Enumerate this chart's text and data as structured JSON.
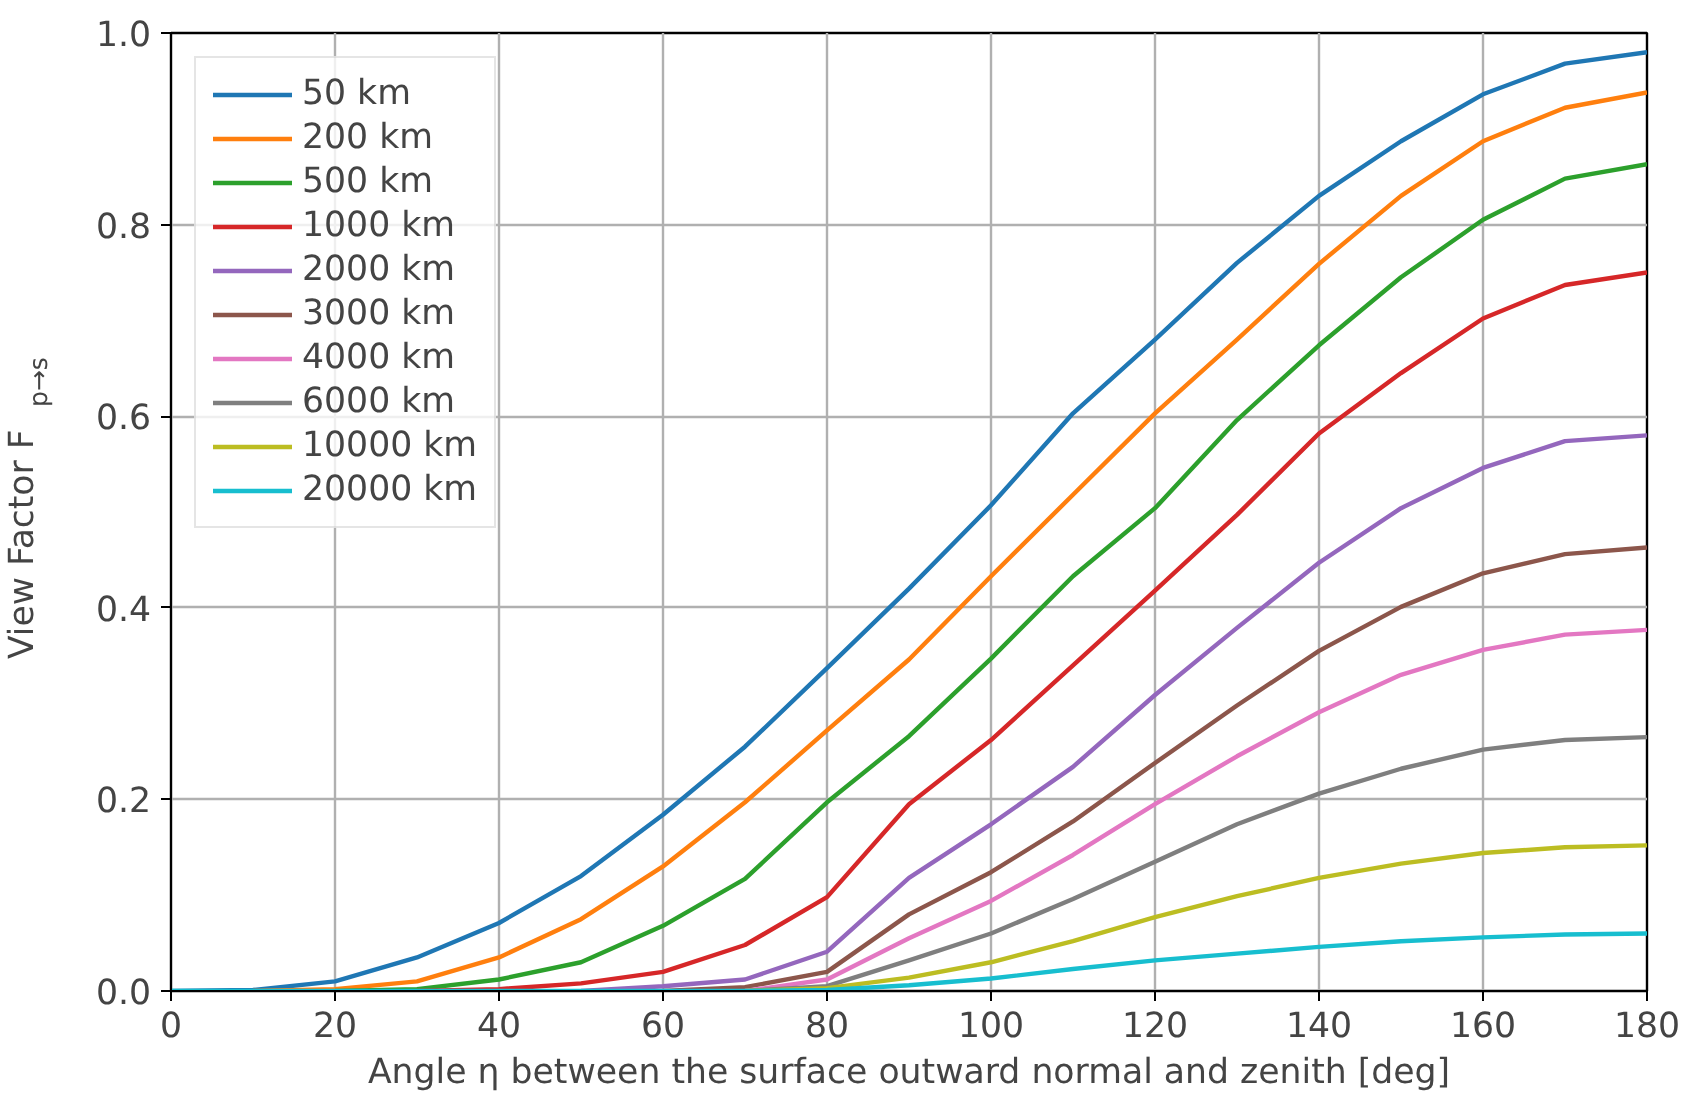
{
  "chart_data": {
    "type": "line",
    "xlabel": "Angle η between the surface outward normal and zenith [deg]",
    "ylabel": "View Factor F$_{p→s}$",
    "x": [
      0,
      10,
      20,
      30,
      40,
      50,
      60,
      70,
      80,
      90,
      100,
      110,
      120,
      130,
      140,
      150,
      160,
      170,
      180
    ],
    "series": [
      {
        "name": "50 km",
        "color": "#1f77b4",
        "values": [
          0,
          0.001,
          0.01,
          0.035,
          0.071,
          0.12,
          0.184,
          0.255,
          0.337,
          0.42,
          0.507,
          0.603,
          0.68,
          0.76,
          0.83,
          0.887,
          0.936,
          0.968,
          0.98
        ]
      },
      {
        "name": "200 km",
        "color": "#ff7f0e",
        "values": [
          null,
          0,
          0.002,
          0.01,
          0.035,
          0.075,
          0.13,
          0.197,
          0.272,
          0.346,
          0.433,
          0.518,
          0.603,
          0.68,
          0.759,
          0.83,
          0.887,
          0.922,
          0.938
        ]
      },
      {
        "name": "500 km",
        "color": "#2ca02c",
        "values": [
          null,
          null,
          0,
          0.002,
          0.012,
          0.03,
          0.068,
          0.117,
          0.197,
          0.266,
          0.347,
          0.433,
          0.504,
          0.596,
          0.674,
          0.745,
          0.805,
          0.848,
          0.863
        ]
      },
      {
        "name": "1000 km",
        "color": "#d62728",
        "values": [
          null,
          null,
          null,
          0,
          0.002,
          0.008,
          0.02,
          0.048,
          0.098,
          0.195,
          0.262,
          0.34,
          0.418,
          0.497,
          0.582,
          0.645,
          0.702,
          0.737,
          0.75
        ]
      },
      {
        "name": "2000 km",
        "color": "#9467bd",
        "values": [
          null,
          null,
          null,
          null,
          null,
          0,
          0.005,
          0.012,
          0.041,
          0.118,
          0.174,
          0.234,
          0.309,
          0.379,
          0.447,
          0.504,
          0.546,
          0.574,
          0.58
        ]
      },
      {
        "name": "3000 km",
        "color": "#8c564b",
        "values": [
          null,
          null,
          null,
          null,
          null,
          null,
          0,
          0.004,
          0.02,
          0.08,
          0.124,
          0.177,
          0.238,
          0.298,
          0.355,
          0.401,
          0.436,
          0.456,
          0.463
        ]
      },
      {
        "name": "4000 km",
        "color": "#e377c2",
        "values": [
          null,
          null,
          null,
          null,
          null,
          null,
          null,
          0,
          0.012,
          0.055,
          0.094,
          0.142,
          0.195,
          0.245,
          0.291,
          0.33,
          0.356,
          0.372,
          0.377
        ]
      },
      {
        "name": "6000 km",
        "color": "#7f7f7f",
        "values": [
          null,
          null,
          null,
          null,
          null,
          null,
          null,
          0,
          0.005,
          0.032,
          0.06,
          0.096,
          0.135,
          0.174,
          0.206,
          0.232,
          0.252,
          0.262,
          0.265
        ]
      },
      {
        "name": "10000 km",
        "color": "#bcbd22",
        "values": [
          null,
          null,
          null,
          null,
          null,
          null,
          null,
          0,
          0.003,
          0.014,
          0.03,
          0.052,
          0.077,
          0.099,
          0.118,
          0.133,
          0.144,
          0.15,
          0.152
        ]
      },
      {
        "name": "20000 km",
        "color": "#17becf",
        "values": [
          0,
          0,
          0,
          0,
          0,
          0,
          0,
          0,
          0.001,
          0.006,
          0.013,
          0.023,
          0.032,
          0.039,
          0.046,
          0.052,
          0.056,
          0.059,
          0.06
        ]
      }
    ],
    "xlim": [
      0,
      180
    ],
    "ylim": [
      0,
      1.0
    ],
    "xticks": [
      0,
      20,
      40,
      60,
      80,
      100,
      120,
      140,
      160,
      180
    ],
    "yticks": [
      {
        "value": 0,
        "label": "0.0"
      },
      {
        "value": 0.2,
        "label": "0.2"
      },
      {
        "value": 0.4,
        "label": "0.4"
      },
      {
        "value": 0.6,
        "label": "0.6"
      },
      {
        "value": 0.8,
        "label": "0.8"
      },
      {
        "value": 1.0,
        "label": "1.0"
      }
    ],
    "grid": true,
    "legend": "top left",
    "marker": "none",
    "line_style": "solid"
  }
}
